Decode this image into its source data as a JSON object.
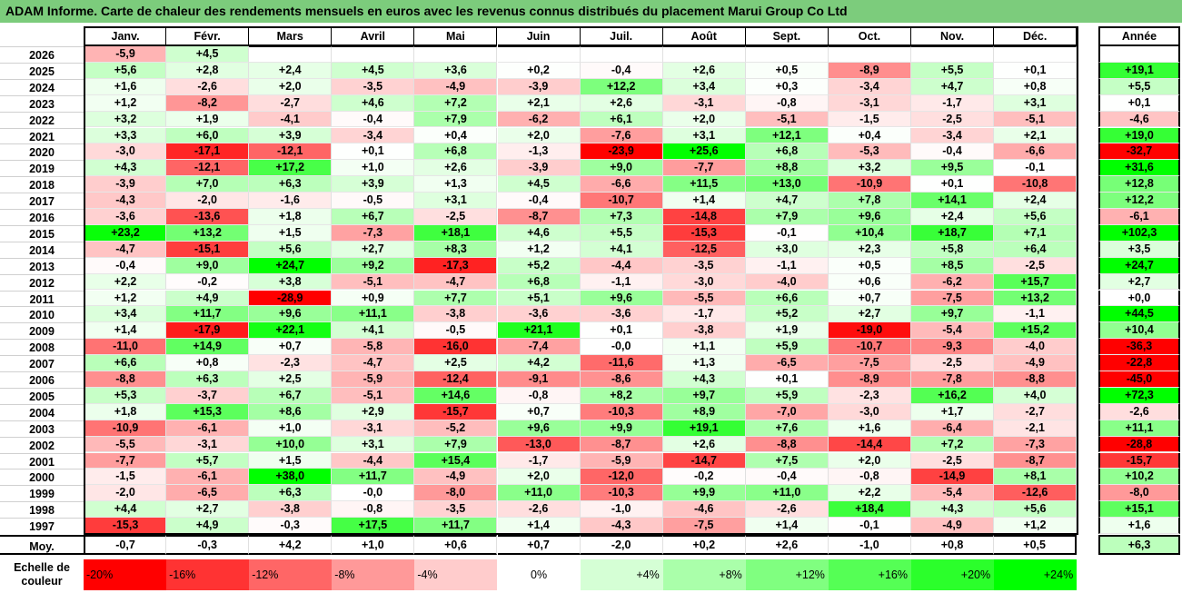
{
  "title": "ADAM Informe. Carte de chaleur des rendements mensuels en euros avec les revenus connus distribués du placement Marui Group Co Ltd",
  "colors": {
    "title_bar": "#7ccc7c",
    "negative_max": "#ff0000",
    "neutral": "#ffffff",
    "positive_max": "#00ff00"
  },
  "chart_data": {
    "type": "heatmap",
    "title": "ADAM Informe. Carte de chaleur des rendements mensuels en euros avec les revenus connus distribués du placement Marui Group Co Ltd",
    "columns": [
      "Janv.",
      "Févr.",
      "Mars",
      "Avril",
      "Mai",
      "Juin",
      "Juil.",
      "Août",
      "Sept.",
      "Oct.",
      "Nov.",
      "Déc."
    ],
    "annual_label": "Année",
    "average_label": "Moy.",
    "rows": [
      {
        "year": "2026",
        "values": [
          "-5,9",
          "+4,5",
          "",
          "",
          "",
          "",
          "",
          "",
          "",
          "",
          "",
          ""
        ],
        "annual": ""
      },
      {
        "year": "2025",
        "values": [
          "+5,6",
          "+2,8",
          "+2,4",
          "+4,5",
          "+3,6",
          "+0,2",
          "-0,4",
          "+2,6",
          "+0,5",
          "-8,9",
          "+5,5",
          "+0,1"
        ],
        "annual": "+19,1"
      },
      {
        "year": "2024",
        "values": [
          "+1,6",
          "-2,6",
          "+2,0",
          "-3,5",
          "-4,9",
          "-3,9",
          "+12,2",
          "+3,4",
          "+0,3",
          "-3,4",
          "+4,7",
          "+0,8"
        ],
        "annual": "+5,5"
      },
      {
        "year": "2023",
        "values": [
          "+1,2",
          "-8,2",
          "-2,7",
          "+4,6",
          "+7,2",
          "+2,1",
          "+2,6",
          "-3,1",
          "-0,8",
          "-3,1",
          "-1,7",
          "+3,1"
        ],
        "annual": "+0,1"
      },
      {
        "year": "2022",
        "values": [
          "+3,2",
          "+1,9",
          "-4,1",
          "-0,4",
          "+7,9",
          "-6,2",
          "+6,1",
          "+2,0",
          "-5,1",
          "-1,5",
          "-2,5",
          "-5,1"
        ],
        "annual": "-4,6"
      },
      {
        "year": "2021",
        "values": [
          "+3,3",
          "+6,0",
          "+3,9",
          "-3,4",
          "+0,4",
          "+2,0",
          "-7,6",
          "+3,1",
          "+12,1",
          "+0,4",
          "-3,4",
          "+2,1"
        ],
        "annual": "+19,0"
      },
      {
        "year": "2020",
        "values": [
          "-3,0",
          "-17,1",
          "-12,1",
          "+0,1",
          "+6,8",
          "-1,3",
          "-23,9",
          "+25,6",
          "+6,8",
          "-5,3",
          "-0,4",
          "-6,6"
        ],
        "annual": "-32,7"
      },
      {
        "year": "2019",
        "values": [
          "+4,3",
          "-12,1",
          "+17,2",
          "+1,0",
          "+2,6",
          "-3,9",
          "+9,0",
          "-7,7",
          "+8,8",
          "+3,2",
          "+9,5",
          "-0,1"
        ],
        "annual": "+31,6"
      },
      {
        "year": "2018",
        "values": [
          "-3,9",
          "+7,0",
          "+6,3",
          "+3,9",
          "+1,3",
          "+4,5",
          "-6,6",
          "+11,5",
          "+13,0",
          "-10,9",
          "+0,1",
          "-10,8"
        ],
        "annual": "+12,8"
      },
      {
        "year": "2017",
        "values": [
          "-4,3",
          "-2,0",
          "-1,6",
          "-0,5",
          "+3,1",
          "-0,4",
          "-10,7",
          "+1,4",
          "+4,7",
          "+7,8",
          "+14,1",
          "+2,4"
        ],
        "annual": "+12,2"
      },
      {
        "year": "2016",
        "values": [
          "-3,6",
          "-13,6",
          "+1,8",
          "+6,7",
          "-2,5",
          "-8,7",
          "+7,3",
          "-14,8",
          "+7,9",
          "+9,6",
          "+2,4",
          "+5,6"
        ],
        "annual": "-6,1"
      },
      {
        "year": "2015",
        "values": [
          "+23,2",
          "+13,2",
          "+1,5",
          "-7,3",
          "+18,1",
          "+4,6",
          "+5,5",
          "-15,3",
          "-0,1",
          "+10,4",
          "+18,7",
          "+7,1"
        ],
        "annual": "+102,3"
      },
      {
        "year": "2014",
        "values": [
          "-4,7",
          "-15,1",
          "+5,6",
          "+2,7",
          "+8,3",
          "+1,2",
          "+4,1",
          "-12,5",
          "+3,0",
          "+2,3",
          "+5,8",
          "+6,4"
        ],
        "annual": "+3,5"
      },
      {
        "year": "2013",
        "values": [
          "-0,4",
          "+9,0",
          "+24,7",
          "+9,2",
          "-17,3",
          "+5,2",
          "-4,4",
          "-3,5",
          "-1,1",
          "+0,5",
          "+8,5",
          "-2,5"
        ],
        "annual": "+24,7"
      },
      {
        "year": "2012",
        "values": [
          "+2,2",
          "-0,2",
          "+3,8",
          "-5,1",
          "-4,7",
          "+6,8",
          "-1,1",
          "-3,0",
          "-4,0",
          "+0,6",
          "-6,2",
          "+15,7"
        ],
        "annual": "+2,7"
      },
      {
        "year": "2011",
        "values": [
          "+1,2",
          "+4,9",
          "-28,9",
          "+0,9",
          "+7,7",
          "+5,1",
          "+9,6",
          "-5,5",
          "+6,6",
          "+0,7",
          "-7,5",
          "+13,2"
        ],
        "annual": "+0,0"
      },
      {
        "year": "2010",
        "values": [
          "+3,4",
          "+11,7",
          "+9,6",
          "+11,1",
          "-3,8",
          "-3,6",
          "-3,6",
          "-1,7",
          "+5,2",
          "+2,7",
          "+9,7",
          "-1,1"
        ],
        "annual": "+44,5"
      },
      {
        "year": "2009",
        "values": [
          "+1,4",
          "-17,9",
          "+22,1",
          "+4,1",
          "-0,5",
          "+21,1",
          "+0,1",
          "-3,8",
          "+1,9",
          "-19,0",
          "-5,4",
          "+15,2"
        ],
        "annual": "+10,4"
      },
      {
        "year": "2008",
        "values": [
          "-11,0",
          "+14,9",
          "+0,7",
          "-5,8",
          "-16,0",
          "-7,4",
          "-0,0",
          "+1,1",
          "+5,9",
          "-10,7",
          "-9,3",
          "-4,0"
        ],
        "annual": "-36,3"
      },
      {
        "year": "2007",
        "values": [
          "+6,6",
          "+0,8",
          "-2,3",
          "-4,7",
          "+2,5",
          "+4,2",
          "-11,6",
          "+1,3",
          "-6,5",
          "-7,5",
          "-2,5",
          "-4,9"
        ],
        "annual": "-22,8"
      },
      {
        "year": "2006",
        "values": [
          "-8,8",
          "+6,3",
          "+2,5",
          "-5,9",
          "-12,4",
          "-9,1",
          "-8,6",
          "+4,3",
          "+0,1",
          "-8,9",
          "-7,8",
          "-8,8"
        ],
        "annual": "-45,0"
      },
      {
        "year": "2005",
        "values": [
          "+5,3",
          "-3,7",
          "+6,7",
          "-5,1",
          "+14,6",
          "-0,8",
          "+8,2",
          "+9,7",
          "+5,9",
          "-2,3",
          "+16,2",
          "+4,0"
        ],
        "annual": "+72,3"
      },
      {
        "year": "2004",
        "values": [
          "+1,8",
          "+15,3",
          "+8,6",
          "+2,9",
          "-15,7",
          "+0,7",
          "-10,3",
          "+8,9",
          "-7,0",
          "-3,0",
          "+1,7",
          "-2,7"
        ],
        "annual": "-2,6"
      },
      {
        "year": "2003",
        "values": [
          "-10,9",
          "-6,1",
          "+1,0",
          "-3,1",
          "-5,2",
          "+9,6",
          "+9,9",
          "+19,1",
          "+7,6",
          "+1,6",
          "-6,4",
          "-2,1"
        ],
        "annual": "+11,1"
      },
      {
        "year": "2002",
        "values": [
          "-5,5",
          "-3,1",
          "+10,0",
          "+3,1",
          "+7,9",
          "-13,0",
          "-8,7",
          "+2,6",
          "-8,8",
          "-14,4",
          "+7,2",
          "-7,3"
        ],
        "annual": "-28,8"
      },
      {
        "year": "2001",
        "values": [
          "-7,7",
          "+5,7",
          "+1,5",
          "-4,4",
          "+15,4",
          "-1,7",
          "-5,9",
          "-14,7",
          "+7,5",
          "+2,0",
          "-2,5",
          "-8,7"
        ],
        "annual": "-15,7"
      },
      {
        "year": "2000",
        "values": [
          "-1,5",
          "-6,1",
          "+38,0",
          "+11,7",
          "-4,9",
          "+2,0",
          "-12,0",
          "-0,2",
          "-0,4",
          "-0,8",
          "-14,9",
          "+8,1"
        ],
        "annual": "+10,2"
      },
      {
        "year": "1999",
        "values": [
          "-2,0",
          "-6,5",
          "+6,3",
          "-0,0",
          "-8,0",
          "+11,0",
          "-10,3",
          "+9,9",
          "+11,0",
          "+2,2",
          "-5,4",
          "-12,6"
        ],
        "annual": "-8,0"
      },
      {
        "year": "1998",
        "values": [
          "+4,4",
          "+2,7",
          "-3,8",
          "-0,8",
          "-3,5",
          "-2,6",
          "-1,0",
          "-4,6",
          "-2,6",
          "+18,4",
          "+4,3",
          "+5,6"
        ],
        "annual": "+15,1"
      },
      {
        "year": "1997",
        "values": [
          "-15,3",
          "+4,9",
          "-0,3",
          "+17,5",
          "+11,7",
          "+1,4",
          "-4,3",
          "-7,5",
          "+1,4",
          "-0,1",
          "-4,9",
          "+1,2"
        ],
        "annual": "+1,6"
      }
    ],
    "averages": [
      "-0,7",
      "-0,3",
      "+4,2",
      "+1,0",
      "+0,6",
      "+0,7",
      "-2,0",
      "+0,2",
      "+2,6",
      "-1,0",
      "+0,8",
      "+0,5"
    ],
    "annual_average": "+6,3",
    "color_scale": {
      "label_line1": "Echelle de",
      "label_line2": "couleur",
      "stops": [
        "-20%",
        "-16%",
        "-12%",
        "-8%",
        "-4%",
        "0%",
        "+4%",
        "+8%",
        "+12%",
        "+16%",
        "+20%",
        "+24%"
      ],
      "values": [
        -20,
        -16,
        -12,
        -8,
        -4,
        0,
        4,
        8,
        12,
        16,
        20,
        24
      ]
    }
  }
}
